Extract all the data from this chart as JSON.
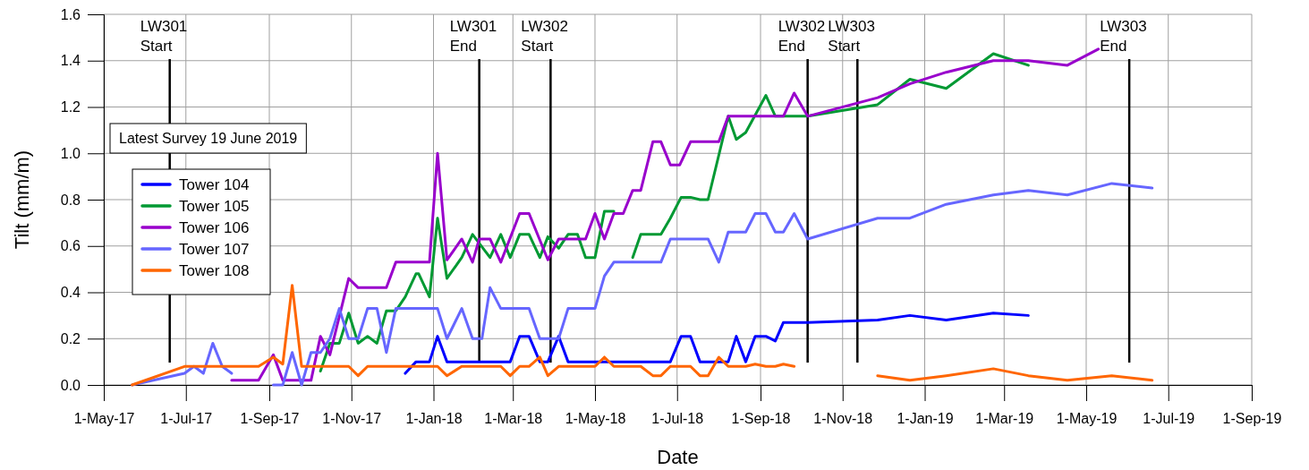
{
  "chart_data": {
    "type": "line",
    "xlabel": "Date",
    "ylabel": "Tilt (mm/m)",
    "xlim": [
      "2017-05-01",
      "2019-09-01"
    ],
    "ylim": [
      0,
      1.6
    ],
    "xticks": [
      {
        "value": "2017-05-01",
        "label": "1-May-17"
      },
      {
        "value": "2017-07-01",
        "label": "1-Jul-17"
      },
      {
        "value": "2017-09-01",
        "label": "1-Sep-17"
      },
      {
        "value": "2017-11-01",
        "label": "1-Nov-17"
      },
      {
        "value": "2018-01-01",
        "label": "1-Jan-18"
      },
      {
        "value": "2018-03-01",
        "label": "1-Mar-18"
      },
      {
        "value": "2018-05-01",
        "label": "1-May-18"
      },
      {
        "value": "2018-07-01",
        "label": "1-Jul-18"
      },
      {
        "value": "2018-09-01",
        "label": "1-Sep-18"
      },
      {
        "value": "2018-11-01",
        "label": "1-Nov-18"
      },
      {
        "value": "2019-01-01",
        "label": "1-Jan-19"
      },
      {
        "value": "2019-03-01",
        "label": "1-Mar-19"
      },
      {
        "value": "2019-05-01",
        "label": "1-May-19"
      },
      {
        "value": "2019-07-01",
        "label": "1-Jul-19"
      },
      {
        "value": "2019-09-01",
        "label": "1-Sep-19"
      }
    ],
    "yticks": [
      {
        "value": 0,
        "label": "0.0"
      },
      {
        "value": 0.2,
        "label": "0.2"
      },
      {
        "value": 0.4,
        "label": "0.4"
      },
      {
        "value": 0.6,
        "label": "0.6"
      },
      {
        "value": 0.8,
        "label": "0.8"
      },
      {
        "value": 1.0,
        "label": "1.0"
      },
      {
        "value": 1.2,
        "label": "1.2"
      },
      {
        "value": 1.4,
        "label": "1.4"
      },
      {
        "value": 1.6,
        "label": "1.6"
      }
    ],
    "grid": true,
    "legend": "left",
    "marker": "none",
    "line_style": "solid",
    "annotations": [
      "Latest Survey 19 June 2019"
    ],
    "ref_lines": [
      {
        "axis": "x",
        "value": "2017-06-19",
        "label": "LW301 Start",
        "color": "#000000"
      },
      {
        "axis": "x",
        "value": "2018-02-04",
        "label": "LW301 End",
        "color": "#000000"
      },
      {
        "axis": "x",
        "value": "2018-03-29",
        "label": "LW302 Start",
        "color": "#000000"
      },
      {
        "axis": "x",
        "value": "2018-10-06",
        "label": "LW302 End",
        "color": "#000000"
      },
      {
        "axis": "x",
        "value": "2018-11-12",
        "label": "LW303 Start",
        "color": "#000000"
      },
      {
        "axis": "x",
        "value": "2019-06-02",
        "label": "LW303 End",
        "color": "#000000"
      }
    ],
    "series": [
      {
        "name": "Tower 104",
        "color": "#0000ff",
        "x": [
          "2017-12-11",
          "2017-12-19",
          "2017-12-29",
          "2018-01-04",
          "2018-01-11",
          "2018-02-27",
          "2018-03-06",
          "2018-03-13",
          "2018-03-21",
          "2018-03-27",
          "2018-04-04",
          "2018-04-11",
          "2018-06-26",
          "2018-07-04",
          "2018-07-11",
          "2018-07-18",
          "2018-08-08",
          "2018-08-14",
          "2018-08-21",
          "2018-08-28",
          "2018-09-05",
          "2018-09-12",
          "2018-09-18",
          "2018-10-06",
          "2018-11-27",
          "2018-12-21",
          "2019-01-17",
          "2019-02-21",
          "2019-03-19"
        ],
        "values": [
          0.05,
          0.1,
          0.1,
          0.21,
          0.1,
          0.1,
          0.21,
          0.21,
          0.1,
          0.1,
          0.21,
          0.1,
          0.1,
          0.21,
          0.21,
          0.1,
          0.1,
          0.21,
          0.1,
          0.21,
          0.21,
          0.19,
          0.27,
          0.27,
          0.28,
          0.3,
          0.28,
          0.31,
          0.3
        ]
      },
      {
        "name": "Tower 105",
        "color": "#009933",
        "x": [
          "2017-10-09",
          "2017-10-16",
          "2017-10-23",
          "2017-10-30",
          "2017-11-06",
          "2017-11-13",
          "2017-11-20",
          "2017-11-27",
          "2017-12-04",
          "2017-12-11",
          "2017-12-19",
          "2017-12-21",
          "2017-12-29",
          "2018-01-04",
          "2018-01-11",
          "2018-01-22",
          "2018-01-30",
          "2018-02-12",
          "2018-02-20",
          "2018-02-27",
          "2018-03-06",
          "2018-03-13",
          "2018-03-21",
          "2018-03-27",
          "2018-04-04",
          "2018-04-11",
          "2018-04-18",
          "2018-04-24",
          "2018-05-01",
          "2018-05-08",
          "2018-05-15",
          "2018-05-22",
          "2018-05-29",
          "2018-06-04",
          "2018-06-19",
          "2018-06-26",
          "2018-07-04",
          "2018-07-11",
          "2018-07-18",
          "2018-07-24",
          "2018-08-08",
          "2018-08-14",
          "2018-08-21",
          "2018-09-05",
          "2018-09-12",
          "2018-10-06",
          "2018-11-27",
          "2018-12-21",
          "2019-01-17",
          "2019-02-21",
          "2019-03-19"
        ],
        "values": [
          0.06,
          0.18,
          0.18,
          0.31,
          0.18,
          0.21,
          0.18,
          0.32,
          0.32,
          0.38,
          0.48,
          0.48,
          0.38,
          0.72,
          0.46,
          0.55,
          0.65,
          0.55,
          0.65,
          0.55,
          0.65,
          0.65,
          0.55,
          0.64,
          0.59,
          0.65,
          0.65,
          0.55,
          0.55,
          0.75,
          0.75,
          null,
          0.55,
          0.65,
          0.65,
          0.72,
          0.81,
          0.81,
          0.8,
          0.8,
          1.16,
          1.06,
          1.09,
          1.25,
          1.16,
          1.16,
          1.21,
          1.32,
          1.28,
          1.43,
          1.38
        ]
      },
      {
        "name": "Tower 106",
        "color": "#9900cc",
        "x": [
          "2017-08-04",
          "2017-08-24",
          "2017-09-04",
          "2017-09-11",
          "2017-10-02",
          "2017-10-09",
          "2017-10-16",
          "2017-10-30",
          "2017-11-06",
          "2017-11-27",
          "2017-12-04",
          "2017-12-29",
          "2018-01-04",
          "2018-01-11",
          "2018-01-22",
          "2018-01-30",
          "2018-02-04",
          "2018-02-12",
          "2018-02-20",
          "2018-03-06",
          "2018-03-13",
          "2018-03-27",
          "2018-04-04",
          "2018-04-24",
          "2018-05-01",
          "2018-05-08",
          "2018-05-15",
          "2018-05-22",
          "2018-05-29",
          "2018-06-04",
          "2018-06-13",
          "2018-06-19",
          "2018-06-26",
          "2018-07-03",
          "2018-07-11",
          "2018-08-01",
          "2018-08-08",
          "2018-09-18",
          "2018-09-26",
          "2018-10-06",
          "2018-11-27",
          "2018-12-21",
          "2019-01-17",
          "2019-02-21",
          "2019-03-19",
          "2019-04-17",
          "2019-05-10"
        ],
        "values": [
          0.02,
          0.02,
          0.13,
          0.02,
          0.02,
          0.21,
          0.13,
          0.46,
          0.42,
          0.42,
          0.53,
          0.53,
          1.0,
          0.54,
          0.63,
          0.53,
          0.63,
          0.63,
          0.53,
          0.74,
          0.74,
          0.54,
          0.63,
          0.63,
          0.74,
          0.63,
          0.74,
          0.74,
          0.84,
          0.84,
          1.05,
          1.05,
          0.95,
          0.95,
          1.05,
          1.05,
          1.16,
          1.16,
          1.26,
          1.16,
          1.24,
          1.3,
          1.35,
          1.4,
          1.4,
          1.38,
          1.45
        ]
      },
      {
        "name": "Tower 107",
        "color": "#6666ff",
        "x": [
          "2017-05-22",
          "2017-06-30",
          "2017-07-07",
          "2017-07-14",
          "2017-07-21",
          "2017-07-28",
          "2017-08-04",
          "2017-08-20",
          "2017-09-04",
          "2017-09-11",
          "2017-09-18",
          "2017-09-25",
          "2017-10-02",
          "2017-10-09",
          "2017-10-16",
          "2017-10-23",
          "2017-10-30",
          "2017-11-06",
          "2017-11-13",
          "2017-11-20",
          "2017-11-27",
          "2017-12-04",
          "2018-01-04",
          "2018-01-11",
          "2018-01-22",
          "2018-01-30",
          "2018-02-06",
          "2018-02-12",
          "2018-02-20",
          "2018-02-27",
          "2018-03-13",
          "2018-03-21",
          "2018-04-04",
          "2018-04-11",
          "2018-05-01",
          "2018-05-08",
          "2018-05-15",
          "2018-06-19",
          "2018-06-26",
          "2018-07-24",
          "2018-08-01",
          "2018-08-08",
          "2018-08-21",
          "2018-08-28",
          "2018-09-05",
          "2018-09-12",
          "2018-09-18",
          "2018-09-26",
          "2018-10-06",
          "2018-11-27",
          "2018-12-21",
          "2019-01-17",
          "2019-02-21",
          "2019-03-19",
          "2019-04-17",
          "2019-05-20",
          "2019-06-19"
        ],
        "values": [
          0,
          0.05,
          0.08,
          0.05,
          0.18,
          0.08,
          0.05,
          null,
          0,
          0,
          0.14,
          0,
          0.14,
          0.14,
          0.2,
          0.33,
          0.2,
          0.2,
          0.33,
          0.33,
          0.14,
          0.33,
          0.33,
          0.2,
          0.33,
          0.2,
          0.2,
          0.42,
          0.33,
          0.33,
          0.33,
          0.2,
          0.2,
          0.33,
          0.33,
          0.47,
          0.53,
          0.53,
          0.63,
          0.63,
          0.53,
          0.66,
          0.66,
          0.74,
          0.74,
          0.66,
          0.66,
          0.74,
          0.63,
          0.72,
          0.72,
          0.78,
          0.82,
          0.84,
          0.82,
          0.87,
          0.85
        ]
      },
      {
        "name": "Tower 108",
        "color": "#ff6600",
        "x": [
          "2017-05-22",
          "2017-06-30",
          "2017-08-24",
          "2017-09-04",
          "2017-09-11",
          "2017-09-18",
          "2017-09-25",
          "2017-10-30",
          "2017-11-06",
          "2017-11-13",
          "2018-01-04",
          "2018-01-11",
          "2018-01-22",
          "2018-02-20",
          "2018-02-27",
          "2018-03-06",
          "2018-03-13",
          "2018-03-21",
          "2018-03-27",
          "2018-04-04",
          "2018-05-01",
          "2018-05-08",
          "2018-05-15",
          "2018-06-04",
          "2018-06-13",
          "2018-06-19",
          "2018-06-26",
          "2018-07-11",
          "2018-07-18",
          "2018-07-24",
          "2018-08-01",
          "2018-08-08",
          "2018-08-21",
          "2018-08-28",
          "2018-09-05",
          "2018-09-12",
          "2018-09-18",
          "2018-09-26",
          "2018-11-01",
          "2018-11-27",
          "2018-12-21",
          "2019-01-17",
          "2019-02-21",
          "2019-03-19",
          "2019-04-17",
          "2019-05-20",
          "2019-06-19"
        ],
        "values": [
          0,
          0.08,
          0.08,
          0.12,
          0.09,
          0.43,
          0.08,
          0.08,
          0.04,
          0.08,
          0.08,
          0.04,
          0.08,
          0.08,
          0.04,
          0.08,
          0.08,
          0.12,
          0.04,
          0.08,
          0.08,
          0.12,
          0.08,
          0.08,
          0.04,
          0.04,
          0.08,
          0.08,
          0.04,
          0.04,
          0.12,
          0.08,
          0.08,
          0.09,
          0.08,
          0.08,
          0.09,
          0.08,
          null,
          0.04,
          0.02,
          0.04,
          0.07,
          0.04,
          0.02,
          0.04,
          0.02
        ]
      }
    ]
  }
}
